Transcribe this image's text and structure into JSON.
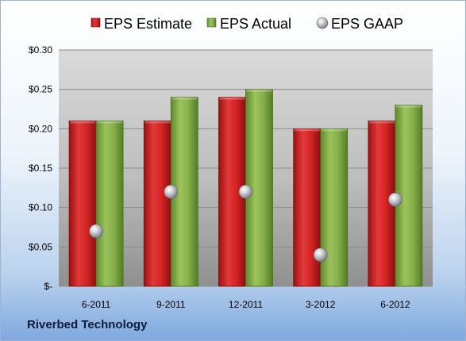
{
  "company_label": "Riverbed Technology",
  "chart_data": {
    "type": "bar",
    "categories": [
      "6-2011",
      "9-2011",
      "12-2011",
      "3-2012",
      "6-2012"
    ],
    "series": [
      {
        "name": "EPS Estimate",
        "kind": "bar",
        "color": "#d42121",
        "values": [
          0.21,
          0.21,
          0.24,
          0.2,
          0.21
        ]
      },
      {
        "name": "EPS Actual",
        "kind": "bar",
        "color": "#86b04a",
        "values": [
          0.21,
          0.24,
          0.25,
          0.2,
          0.23
        ]
      },
      {
        "name": "EPS GAAP",
        "kind": "marker",
        "color": "#a8a8b0",
        "values": [
          0.07,
          0.12,
          0.12,
          0.04,
          0.11
        ]
      }
    ],
    "y_ticks": [
      "$-",
      "$0.05",
      "$0.10",
      "$0.15",
      "$0.20",
      "$0.25",
      "$0.30"
    ],
    "ylim": [
      0,
      0.3
    ],
    "grid": true,
    "legend_position": "top"
  }
}
